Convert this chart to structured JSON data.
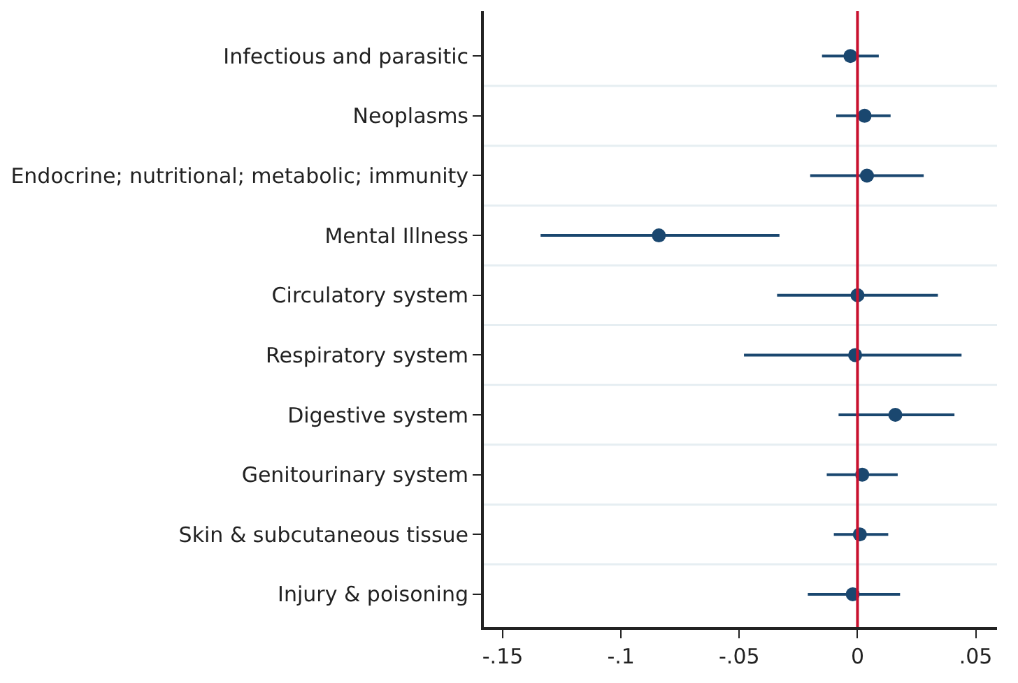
{
  "chart_data": {
    "type": "scatter",
    "orientation": "horizontal",
    "categories": [
      "Infectious and parasitic",
      "Neoplasms",
      "Endocrine; nutritional; metabolic; immunity",
      "Mental Illness",
      "Circulatory system",
      "Respiratory system",
      "Digestive system",
      "Genitourinary system",
      "Skin & subcutaneous tissue",
      "Injury & poisoning"
    ],
    "series": [
      {
        "color": "#1a476f",
        "values": [
          -0.003,
          0.003,
          0.004,
          -0.084,
          0.0,
          -0.001,
          0.016,
          0.002,
          0.001,
          -0.002
        ],
        "errors": [
          [
            -0.015,
            0.009
          ],
          [
            -0.009,
            0.014
          ],
          [
            -0.02,
            0.028
          ],
          [
            -0.134,
            -0.033
          ],
          [
            -0.034,
            0.034
          ],
          [
            -0.048,
            0.044
          ],
          [
            -0.008,
            0.041
          ],
          [
            -0.013,
            0.017
          ],
          [
            -0.01,
            0.013
          ],
          [
            -0.021,
            0.018
          ]
        ]
      }
    ],
    "xlim": [
      -0.158,
      0.059
    ],
    "xticks": [
      {
        "value": -0.15,
        "label": "-.15"
      },
      {
        "value": -0.1,
        "label": "-.1"
      },
      {
        "value": -0.05,
        "label": "-.05"
      },
      {
        "value": 0,
        "label": "0"
      },
      {
        "value": 0.05,
        "label": ".05"
      }
    ],
    "ref_lines": [
      {
        "axis": "x",
        "value": 0,
        "color": "#c8102e"
      }
    ],
    "grid": "y",
    "marker": "circle"
  }
}
